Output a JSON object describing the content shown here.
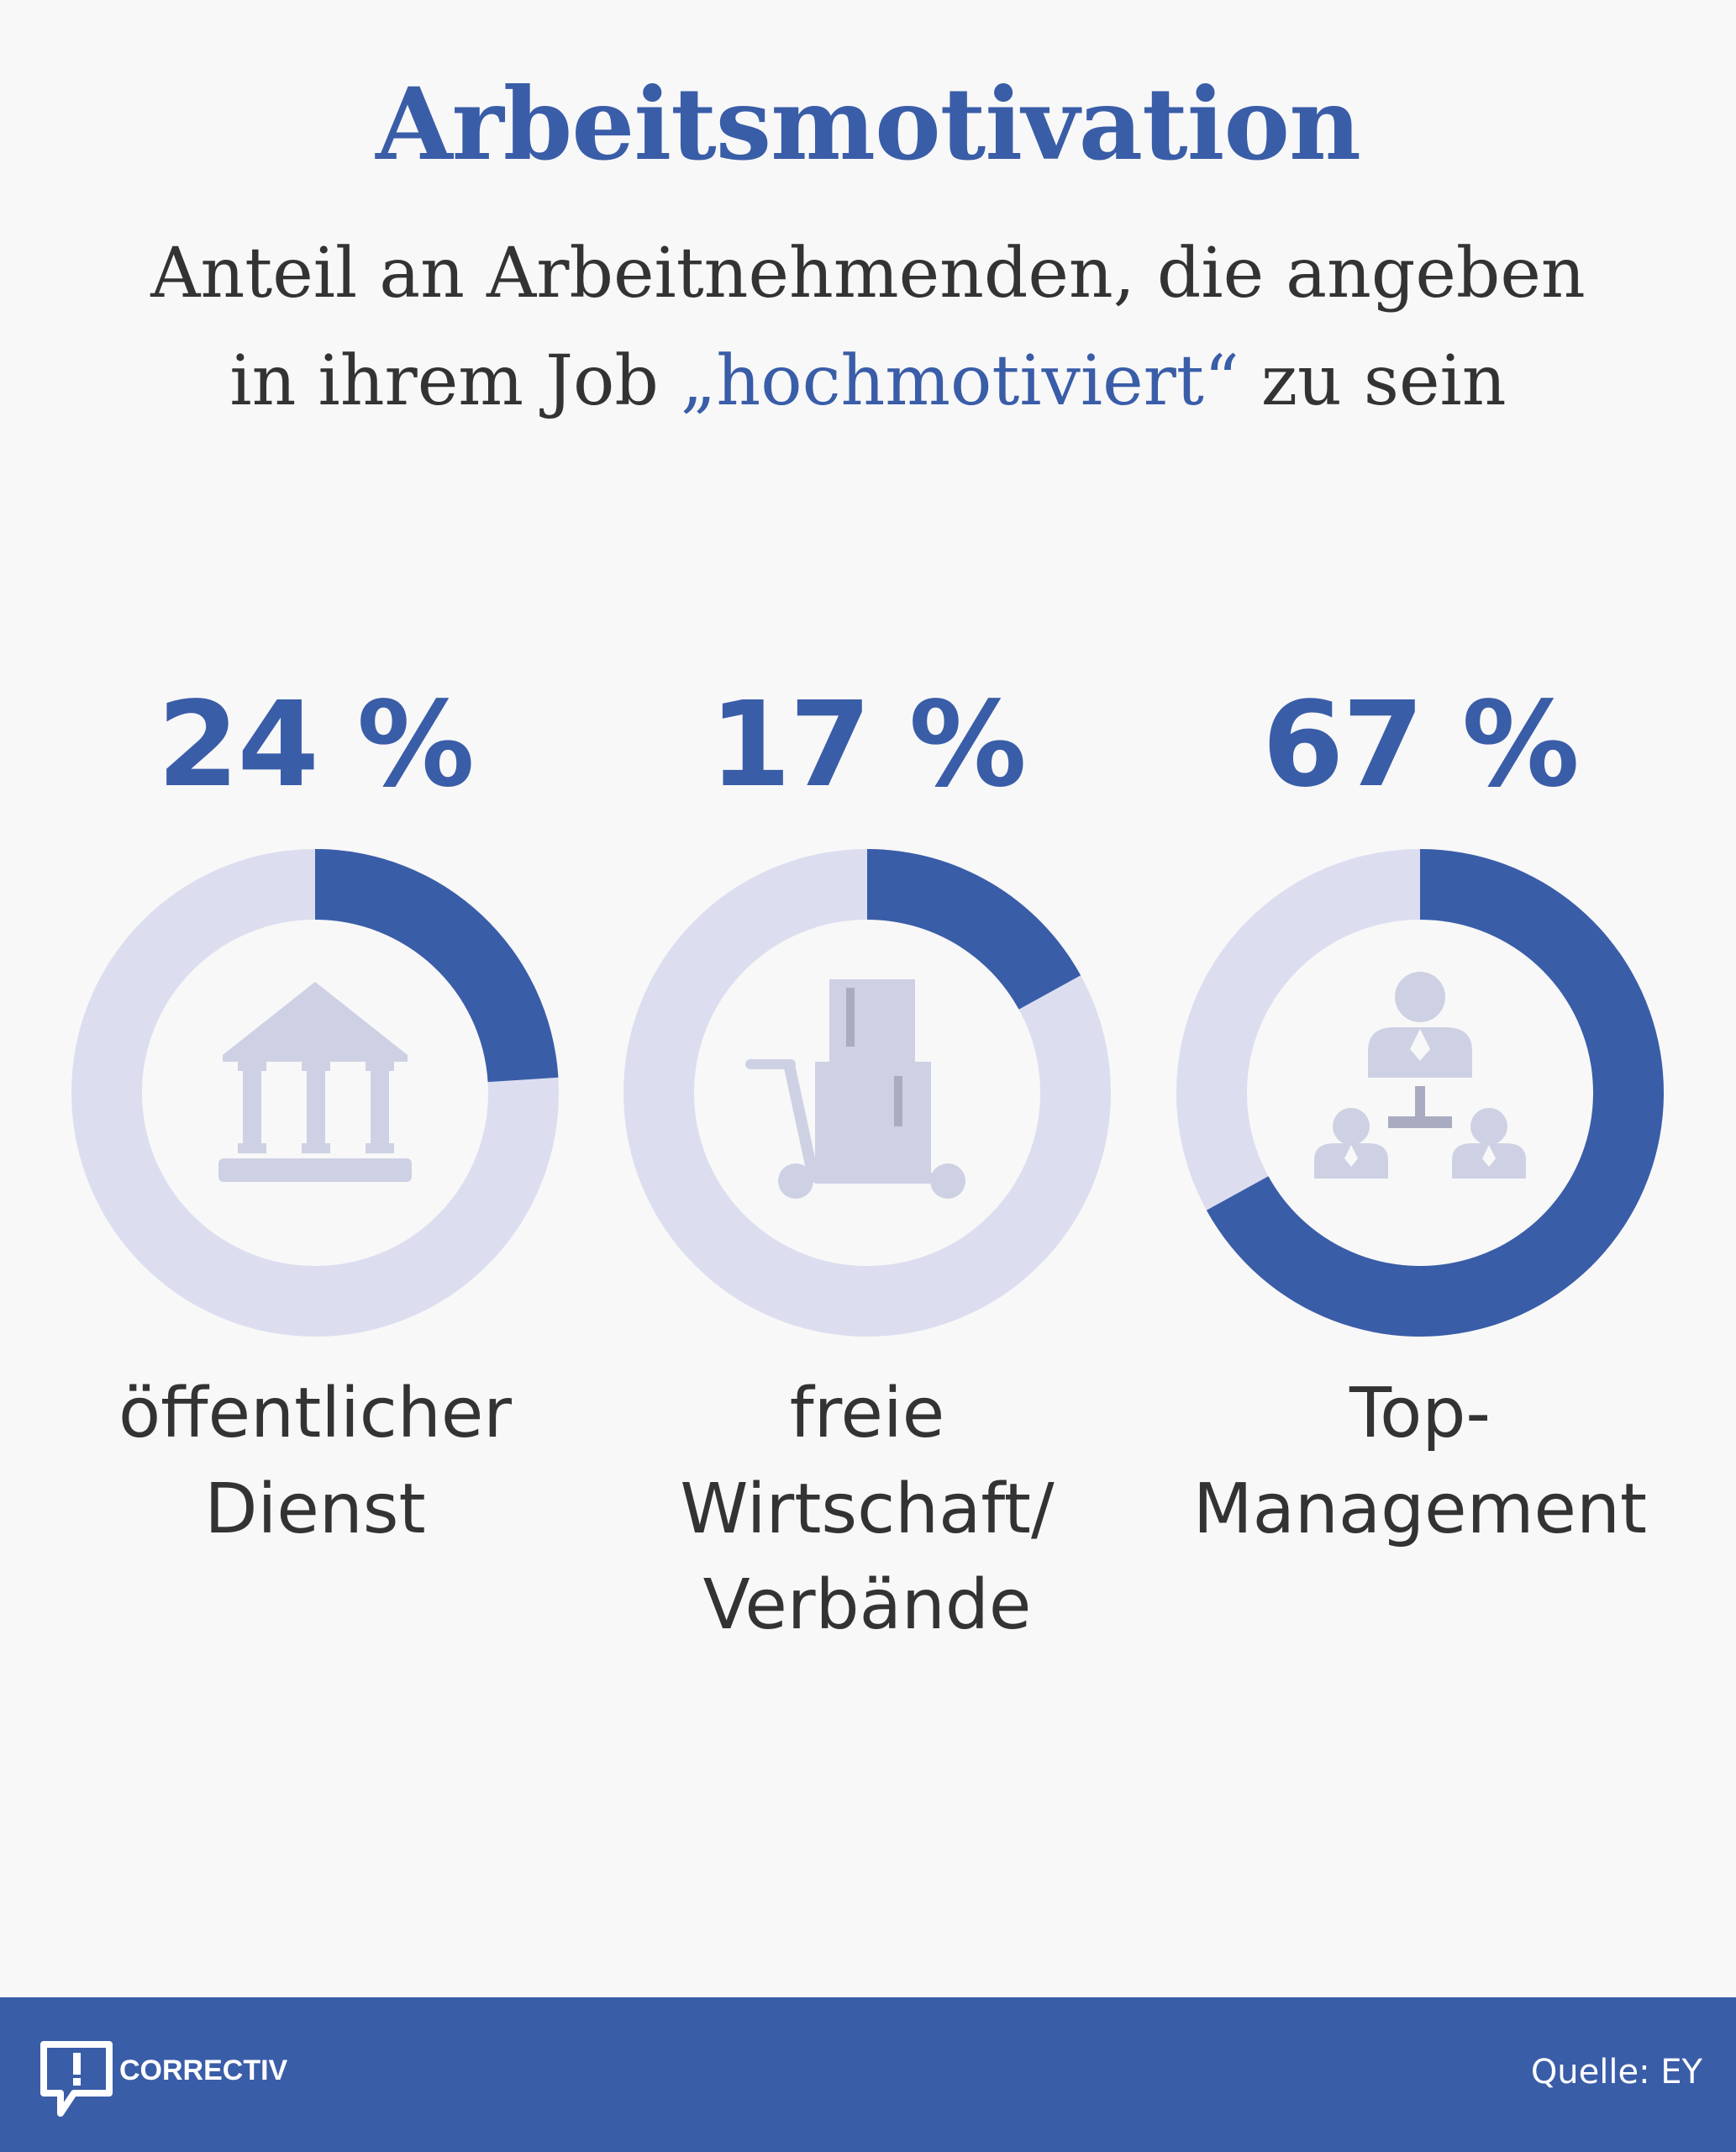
{
  "title": "Arbeitsmotivation",
  "subtitle": {
    "line1": "Anteil an Arbeitnehmenden, die angeben",
    "line2_pre": "in ihrem Job ",
    "line2_highlight": "„hochmotiviert“",
    "line2_post": " zu sein"
  },
  "colors": {
    "accent": "#3a5da8",
    "track": "#dcdef0",
    "icon": "#ced1e4",
    "icon_dark": "#a9acc0",
    "text": "#333333",
    "background": "#f8f8f8"
  },
  "chart_data": {
    "type": "donut",
    "unit": "%",
    "items": [
      {
        "value": 24,
        "value_label": "24 %",
        "label_lines": [
          "öffentlicher",
          "Dienst"
        ],
        "icon": "bank-building-icon"
      },
      {
        "value": 17,
        "value_label": "17 %",
        "label_lines": [
          "freie",
          "Wirtschaft/",
          "Verbände"
        ],
        "icon": "luggage-cart-icon"
      },
      {
        "value": 67,
        "value_label": "67 %",
        "label_lines": [
          "Top-",
          "Management"
        ],
        "icon": "org-hierarchy-icon"
      }
    ]
  },
  "footer": {
    "brand": "CORRECTIV",
    "source": "Quelle: EY"
  }
}
